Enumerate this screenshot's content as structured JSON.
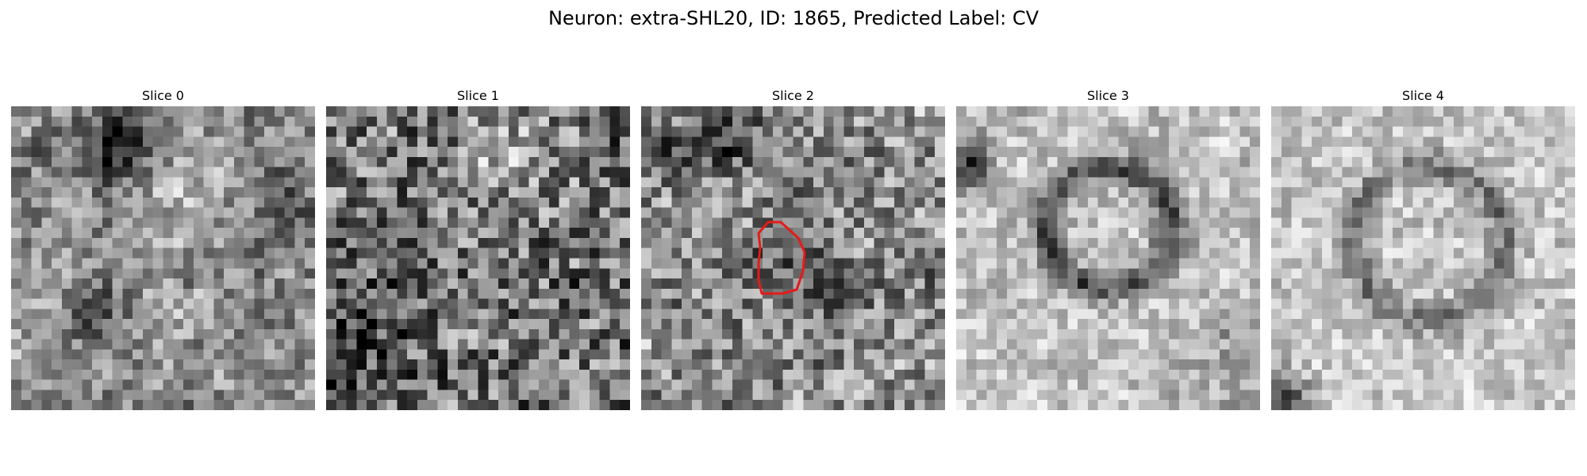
{
  "figure": {
    "title": "Neuron: extra-SHL20, ID: 1865, Predicted Label: CV"
  },
  "panels": [
    {
      "title": "Slice 0",
      "pattern": "noisy-dark-top-blobs"
    },
    {
      "title": "Slice 1",
      "pattern": "dense-noise"
    },
    {
      "title": "Slice 2",
      "pattern": "noise-with-center-contour"
    },
    {
      "title": "Slice 3",
      "pattern": "bright-with-dark-ring"
    },
    {
      "title": "Slice 4",
      "pattern": "bright-with-faint-ring"
    }
  ],
  "contour": {
    "color": "#e61a1a",
    "panel_index": 2
  },
  "colormap": "gray"
}
